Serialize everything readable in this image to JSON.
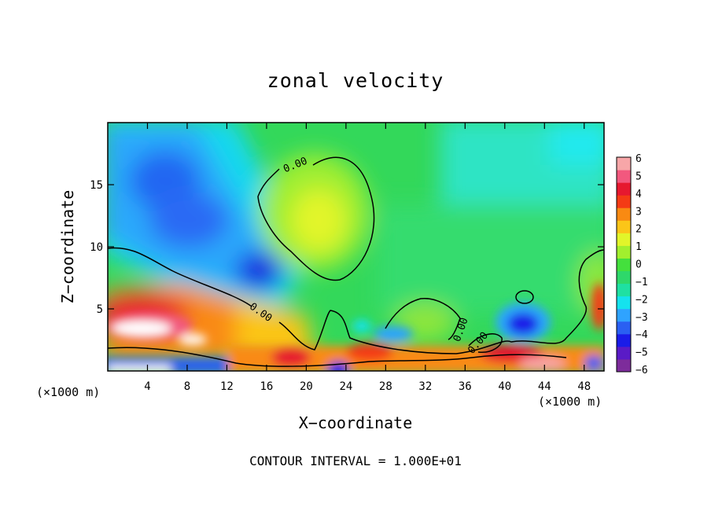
{
  "chart_data": {
    "type": "heatmap",
    "title": "zonal velocity",
    "xlabel": "X−coordinate",
    "ylabel": "Z−coordinate",
    "x_unit_left": "(×1000 m)",
    "x_unit_right": "(×1000 m)",
    "xlim": [
      0,
      50
    ],
    "ylim": [
      0,
      20
    ],
    "xticks": [
      4,
      8,
      12,
      16,
      20,
      24,
      28,
      32,
      36,
      40,
      44,
      48
    ],
    "yticks": [
      5,
      10,
      15
    ],
    "footer": "CONTOUR INTERVAL = 1.000E+01",
    "colorbar": {
      "min": -6,
      "max": 6,
      "labels": [
        "6",
        "5",
        "4",
        "3",
        "2",
        "1",
        "0",
        "−1",
        "−2",
        "−3",
        "−4",
        "−5",
        "−6"
      ],
      "colors": [
        "#7d2c9b",
        "#5a1bc6",
        "#1a1ce8",
        "#2a60f2",
        "#2fa3ff",
        "#15e2ee",
        "#1fe0a2",
        "#2ed86a",
        "#44e03d",
        "#a2ef2e",
        "#e2f52a",
        "#fbc518",
        "#f98a12",
        "#f43b15",
        "#e6182f",
        "#f2587e",
        "#f7a6a8"
      ]
    },
    "contour_label": "0.00",
    "features": [
      {
        "name": "upper-left negative jet",
        "x": 7,
        "z": 12.5,
        "value": -4
      },
      {
        "name": "mid negative core",
        "x": 15,
        "z": 8,
        "value": -4.5
      },
      {
        "name": "upper positive cell",
        "x": 21,
        "z": 12,
        "value": 1.8
      },
      {
        "name": "low-level positive region",
        "x": 8,
        "z": 3,
        "value": 4
      },
      {
        "name": "right negative core",
        "x": 42,
        "z": 3.5,
        "value": -4
      },
      {
        "name": "surface positive strip",
        "x": 44,
        "z": 0.5,
        "value": 5
      }
    ]
  }
}
